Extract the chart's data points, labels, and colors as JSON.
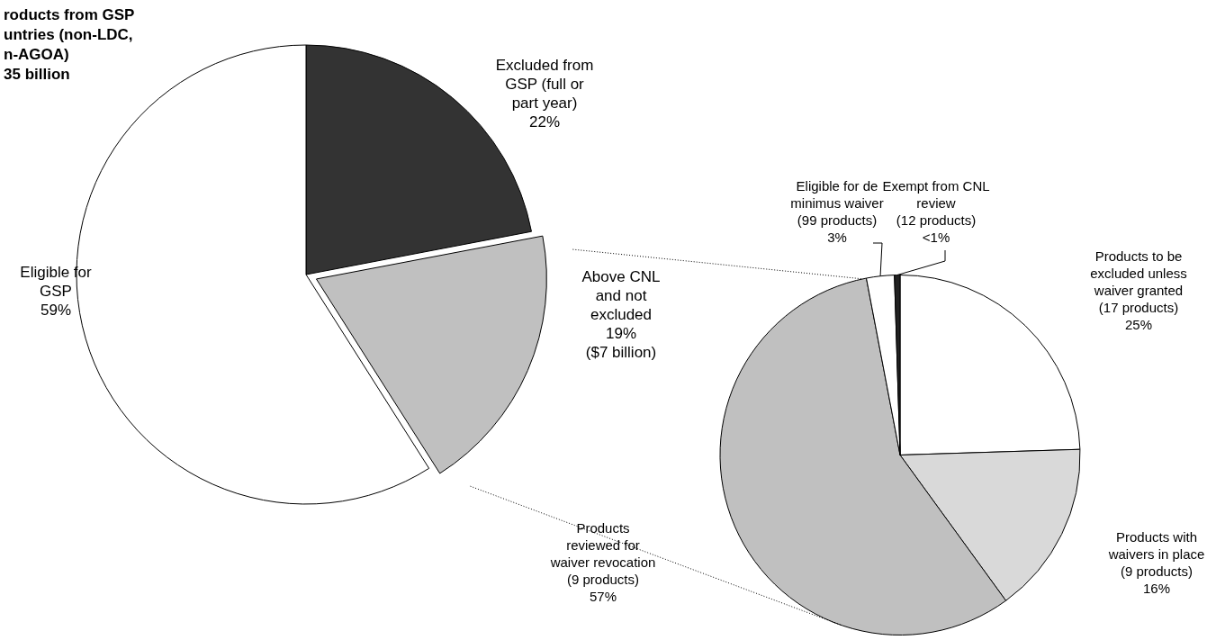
{
  "chart_data": [
    {
      "type": "pie",
      "title": "roducts from GSP untries (non-LDC, n-AGOA) 35 billion",
      "categories": [
        "Excluded from GSP (full or part year)",
        "Above CNL and not excluded",
        "Eligible for GSP"
      ],
      "values": [
        22,
        19,
        59
      ],
      "value_labels": [
        "22%",
        "19% ($7 billion)",
        "59%"
      ],
      "colors": [
        "#333333",
        "#c0c0c0",
        "#ffffff"
      ]
    },
    {
      "type": "pie",
      "categories": [
        "Products to be excluded unless waiver granted (17 products)",
        "Products with waivers in place (9 products)",
        "Products reviewed for waiver revocation (9 products)",
        "Eligible for de minimus waiver (99 products)",
        "Exempt from CNL review (12 products)"
      ],
      "values": [
        24.5,
        15.5,
        57,
        2.5,
        0.5
      ],
      "value_labels": [
        "25%",
        "16%",
        "57%",
        "3%",
        "<1%"
      ],
      "colors": [
        "#ffffff",
        "#d9d9d9",
        "#c0c0c0",
        "#ffffff",
        "#222222"
      ]
    }
  ]
}
